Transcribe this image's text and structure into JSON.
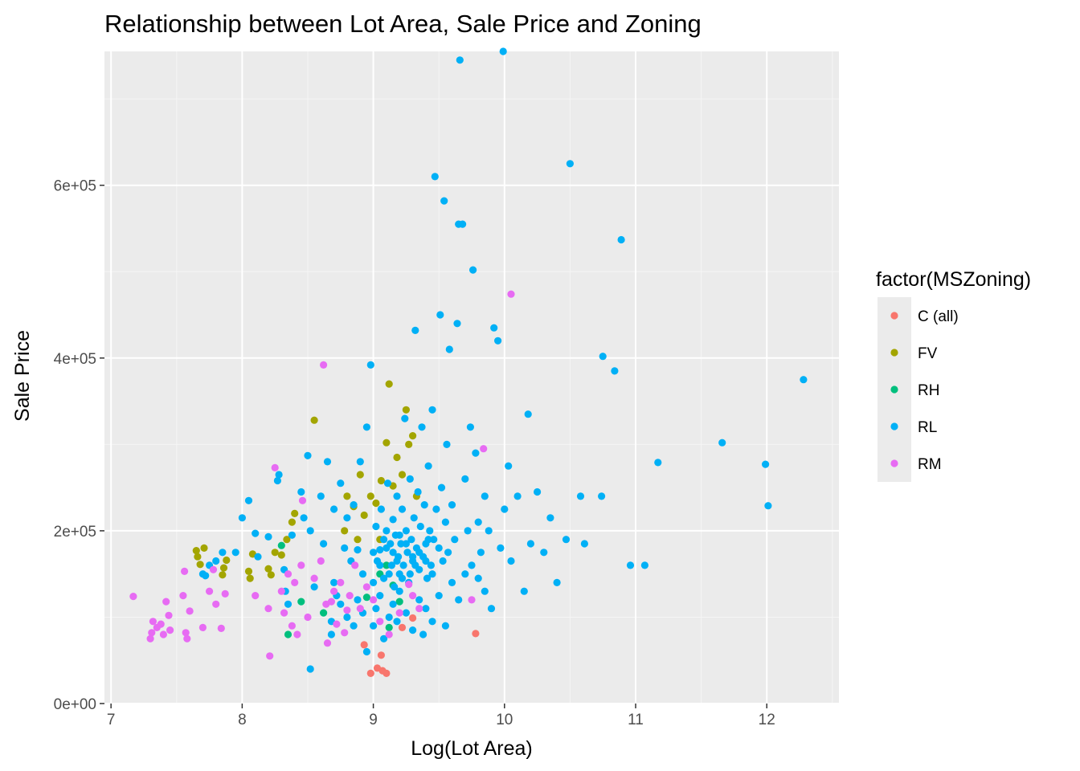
{
  "chart_data": {
    "type": "scatter",
    "title": "Relationship between Lot Area, Sale Price and Zoning",
    "xlabel": "Log(Lot Area)",
    "ylabel": "Sale Price",
    "xlim": [
      6.95,
      12.55
    ],
    "ylim": [
      0,
      755000
    ],
    "x_ticks": [
      7,
      8,
      9,
      10,
      11,
      12
    ],
    "x_tick_labels": [
      "7",
      "8",
      "9",
      "10",
      "11",
      "12"
    ],
    "y_ticks": [
      0,
      200000,
      400000,
      600000
    ],
    "y_tick_labels": [
      "0e+00",
      "2e+05",
      "4e+05",
      "6e+05"
    ],
    "grid": true,
    "legend": {
      "title": "factor(MSZoning)",
      "position": "right"
    },
    "series": [
      {
        "name": "C (all)",
        "color": "#F8766D",
        "points": [
          [
            8.93,
            68000
          ],
          [
            8.98,
            35000
          ],
          [
            9.03,
            41000
          ],
          [
            9.07,
            38000
          ],
          [
            9.1,
            35000
          ],
          [
            9.06,
            56000
          ],
          [
            9.78,
            81000
          ],
          [
            9.22,
            88000
          ],
          [
            9.3,
            99000
          ]
        ]
      },
      {
        "name": "FV",
        "color": "#A3A500",
        "points": [
          [
            7.65,
            177000
          ],
          [
            7.66,
            170000
          ],
          [
            7.68,
            161000
          ],
          [
            7.71,
            180000
          ],
          [
            7.85,
            149000
          ],
          [
            7.86,
            157000
          ],
          [
            7.88,
            166000
          ],
          [
            8.05,
            153000
          ],
          [
            8.06,
            145000
          ],
          [
            8.08,
            173000
          ],
          [
            8.2,
            156000
          ],
          [
            8.22,
            149000
          ],
          [
            8.25,
            175000
          ],
          [
            8.3,
            172000
          ],
          [
            8.34,
            190000
          ],
          [
            8.38,
            210000
          ],
          [
            8.4,
            220000
          ],
          [
            8.55,
            328000
          ],
          [
            8.78,
            200000
          ],
          [
            8.8,
            240000
          ],
          [
            8.85,
            228000
          ],
          [
            8.88,
            190000
          ],
          [
            8.9,
            265000
          ],
          [
            8.93,
            218000
          ],
          [
            8.98,
            240000
          ],
          [
            9.02,
            232000
          ],
          [
            9.06,
            258000
          ],
          [
            9.1,
            302000
          ],
          [
            9.12,
            370000
          ],
          [
            9.15,
            252000
          ],
          [
            9.18,
            285000
          ],
          [
            9.22,
            265000
          ],
          [
            9.25,
            340000
          ],
          [
            9.3,
            310000
          ],
          [
            9.33,
            240000
          ],
          [
            9.27,
            300000
          ],
          [
            9.05,
            190000
          ]
        ]
      },
      {
        "name": "RH",
        "color": "#00BF7D",
        "points": [
          [
            8.3,
            183000
          ],
          [
            8.35,
            80000
          ],
          [
            8.45,
            118000
          ],
          [
            8.62,
            105000
          ],
          [
            8.95,
            123000
          ],
          [
            9.05,
            150000
          ],
          [
            9.1,
            160000
          ],
          [
            9.15,
            137000
          ],
          [
            9.12,
            88000
          ],
          [
            9.2,
            118000
          ]
        ]
      },
      {
        "name": "RL",
        "color": "#00B0F6",
        "points": [
          [
            7.7,
            150000
          ],
          [
            7.72,
            148000
          ],
          [
            7.75,
            160000
          ],
          [
            7.8,
            165000
          ],
          [
            7.85,
            175000
          ],
          [
            7.95,
            175000
          ],
          [
            8.0,
            215000
          ],
          [
            8.05,
            235000
          ],
          [
            8.1,
            197000
          ],
          [
            8.12,
            170000
          ],
          [
            8.2,
            193000
          ],
          [
            8.27,
            258000
          ],
          [
            8.28,
            265000
          ],
          [
            8.32,
            155000
          ],
          [
            8.33,
            130000
          ],
          [
            8.35,
            115000
          ],
          [
            8.38,
            195000
          ],
          [
            8.45,
            245000
          ],
          [
            8.47,
            215000
          ],
          [
            8.5,
            287000
          ],
          [
            8.52,
            200000
          ],
          [
            8.55,
            135000
          ],
          [
            8.6,
            240000
          ],
          [
            8.62,
            185000
          ],
          [
            8.65,
            280000
          ],
          [
            8.7,
            225000
          ],
          [
            8.72,
            125000
          ],
          [
            8.75,
            255000
          ],
          [
            8.78,
            180000
          ],
          [
            8.8,
            215000
          ],
          [
            8.83,
            165000
          ],
          [
            8.85,
            230000
          ],
          [
            8.88,
            178000
          ],
          [
            8.9,
            280000
          ],
          [
            8.92,
            150000
          ],
          [
            8.95,
            320000
          ],
          [
            8.98,
            392000
          ],
          [
            9.0,
            140000
          ],
          [
            9.02,
            205000
          ],
          [
            9.03,
            165000
          ],
          [
            9.05,
            178000
          ],
          [
            9.06,
            225000
          ],
          [
            9.08,
            145000
          ],
          [
            9.1,
            200000
          ],
          [
            9.11,
            255000
          ],
          [
            9.13,
            185000
          ],
          [
            9.14,
            160000
          ],
          [
            9.15,
            213000
          ],
          [
            9.16,
            135000
          ],
          [
            9.17,
            195000
          ],
          [
            9.18,
            240000
          ],
          [
            9.19,
            170000
          ],
          [
            9.2,
            150000
          ],
          [
            9.21,
            185000
          ],
          [
            9.22,
            225000
          ],
          [
            9.23,
            160000
          ],
          [
            9.24,
            330000
          ],
          [
            9.25,
            200000
          ],
          [
            9.26,
            175000
          ],
          [
            9.27,
            140000
          ],
          [
            9.28,
            260000
          ],
          [
            9.29,
            190000
          ],
          [
            9.3,
            165000
          ],
          [
            9.31,
            215000
          ],
          [
            9.32,
            432000
          ],
          [
            9.33,
            180000
          ],
          [
            9.34,
            245000
          ],
          [
            9.35,
            155000
          ],
          [
            9.36,
            205000
          ],
          [
            9.37,
            320000
          ],
          [
            9.38,
            170000
          ],
          [
            9.39,
            230000
          ],
          [
            9.4,
            185000
          ],
          [
            9.41,
            145000
          ],
          [
            9.42,
            275000
          ],
          [
            9.43,
            200000
          ],
          [
            9.44,
            160000
          ],
          [
            9.45,
            340000
          ],
          [
            9.46,
            190000
          ],
          [
            9.47,
            610000
          ],
          [
            9.48,
            225000
          ],
          [
            9.5,
            180000
          ],
          [
            9.51,
            450000
          ],
          [
            9.52,
            250000
          ],
          [
            9.53,
            165000
          ],
          [
            9.54,
            582000
          ],
          [
            9.55,
            210000
          ],
          [
            9.56,
            300000
          ],
          [
            9.57,
            175000
          ],
          [
            9.58,
            410000
          ],
          [
            9.6,
            230000
          ],
          [
            9.62,
            190000
          ],
          [
            9.64,
            440000
          ],
          [
            9.65,
            555000
          ],
          [
            9.66,
            745000
          ],
          [
            9.68,
            555000
          ],
          [
            9.7,
            260000
          ],
          [
            9.72,
            200000
          ],
          [
            9.74,
            320000
          ],
          [
            9.76,
            502000
          ],
          [
            9.78,
            290000
          ],
          [
            9.8,
            210000
          ],
          [
            9.82,
            175000
          ],
          [
            9.85,
            240000
          ],
          [
            9.88,
            200000
          ],
          [
            9.92,
            435000
          ],
          [
            9.95,
            420000
          ],
          [
            9.97,
            180000
          ],
          [
            9.99,
            755000
          ],
          [
            10.0,
            225000
          ],
          [
            10.03,
            275000
          ],
          [
            10.05,
            165000
          ],
          [
            10.1,
            240000
          ],
          [
            10.15,
            130000
          ],
          [
            10.18,
            335000
          ],
          [
            10.2,
            185000
          ],
          [
            10.25,
            245000
          ],
          [
            10.3,
            175000
          ],
          [
            10.35,
            215000
          ],
          [
            10.4,
            140000
          ],
          [
            10.47,
            190000
          ],
          [
            10.5,
            625000
          ],
          [
            10.58,
            240000
          ],
          [
            10.61,
            185000
          ],
          [
            10.74,
            240000
          ],
          [
            10.75,
            402000
          ],
          [
            10.84,
            385000
          ],
          [
            10.89,
            537000
          ],
          [
            10.96,
            160000
          ],
          [
            11.07,
            160000
          ],
          [
            11.17,
            279000
          ],
          [
            11.66,
            302000
          ],
          [
            11.99,
            277000
          ],
          [
            12.01,
            229000
          ],
          [
            12.28,
            375000
          ],
          [
            8.52,
            40000
          ],
          [
            8.68,
            80000
          ],
          [
            8.95,
            60000
          ],
          [
            9.0,
            90000
          ],
          [
            9.02,
            110000
          ],
          [
            9.05,
            125000
          ],
          [
            9.08,
            75000
          ],
          [
            9.12,
            100000
          ],
          [
            9.15,
            115000
          ],
          [
            9.18,
            95000
          ],
          [
            9.2,
            130000
          ],
          [
            9.25,
            105000
          ],
          [
            9.3,
            85000
          ],
          [
            9.35,
            120000
          ],
          [
            9.38,
            80000
          ],
          [
            9.4,
            110000
          ],
          [
            9.45,
            95000
          ],
          [
            9.5,
            125000
          ],
          [
            9.55,
            90000
          ],
          [
            9.6,
            140000
          ],
          [
            9.65,
            120000
          ],
          [
            9.7,
            150000
          ],
          [
            9.75,
            160000
          ],
          [
            9.8,
            145000
          ],
          [
            9.85,
            130000
          ],
          [
            9.9,
            110000
          ],
          [
            8.68,
            95000
          ],
          [
            8.7,
            140000
          ],
          [
            8.75,
            115000
          ],
          [
            8.8,
            100000
          ],
          [
            8.85,
            90000
          ],
          [
            8.88,
            120000
          ],
          [
            8.92,
            105000
          ],
          [
            9.0,
            175000
          ],
          [
            9.1,
            180000
          ],
          [
            9.2,
            195000
          ],
          [
            9.15,
            175000
          ],
          [
            9.25,
            185000
          ],
          [
            9.05,
            160000
          ],
          [
            9.3,
            170000
          ],
          [
            9.12,
            150000
          ],
          [
            9.22,
            145000
          ],
          [
            9.32,
            160000
          ],
          [
            9.18,
            165000
          ],
          [
            9.08,
            190000
          ],
          [
            9.28,
            150000
          ],
          [
            9.35,
            175000
          ],
          [
            9.4,
            165000
          ],
          [
            9.45,
            150000
          ],
          [
            9.42,
            190000
          ]
        ]
      },
      {
        "name": "RM",
        "color": "#E76BF3",
        "points": [
          [
            7.17,
            124000
          ],
          [
            7.3,
            75000
          ],
          [
            7.31,
            82000
          ],
          [
            7.32,
            95000
          ],
          [
            7.35,
            88000
          ],
          [
            7.38,
            92000
          ],
          [
            7.4,
            80000
          ],
          [
            7.42,
            118000
          ],
          [
            7.44,
            102000
          ],
          [
            7.45,
            85000
          ],
          [
            7.55,
            125000
          ],
          [
            7.56,
            153000
          ],
          [
            7.57,
            82000
          ],
          [
            7.58,
            75000
          ],
          [
            7.6,
            107000
          ],
          [
            7.7,
            88000
          ],
          [
            7.75,
            130000
          ],
          [
            7.78,
            155000
          ],
          [
            7.8,
            115000
          ],
          [
            7.84,
            87000
          ],
          [
            7.87,
            127000
          ],
          [
            8.1,
            125000
          ],
          [
            8.2,
            110000
          ],
          [
            8.21,
            55000
          ],
          [
            8.25,
            273000
          ],
          [
            8.3,
            130000
          ],
          [
            8.32,
            105000
          ],
          [
            8.35,
            150000
          ],
          [
            8.38,
            90000
          ],
          [
            8.4,
            140000
          ],
          [
            8.42,
            80000
          ],
          [
            8.45,
            160000
          ],
          [
            8.46,
            235000
          ],
          [
            8.5,
            100000
          ],
          [
            8.55,
            145000
          ],
          [
            8.6,
            165000
          ],
          [
            8.62,
            392000
          ],
          [
            8.64,
            115000
          ],
          [
            8.65,
            70000
          ],
          [
            8.68,
            118000
          ],
          [
            8.7,
            130000
          ],
          [
            8.72,
            92000
          ],
          [
            8.75,
            140000
          ],
          [
            8.78,
            82000
          ],
          [
            8.8,
            108000
          ],
          [
            8.82,
            125000
          ],
          [
            8.86,
            160000
          ],
          [
            8.9,
            110000
          ],
          [
            8.95,
            135000
          ],
          [
            9.0,
            120000
          ],
          [
            9.05,
            95000
          ],
          [
            9.12,
            80000
          ],
          [
            9.2,
            105000
          ],
          [
            9.27,
            138000
          ],
          [
            9.3,
            125000
          ],
          [
            9.35,
            110000
          ],
          [
            9.75,
            120000
          ],
          [
            9.84,
            295000
          ],
          [
            10.05,
            474000
          ]
        ]
      }
    ]
  }
}
